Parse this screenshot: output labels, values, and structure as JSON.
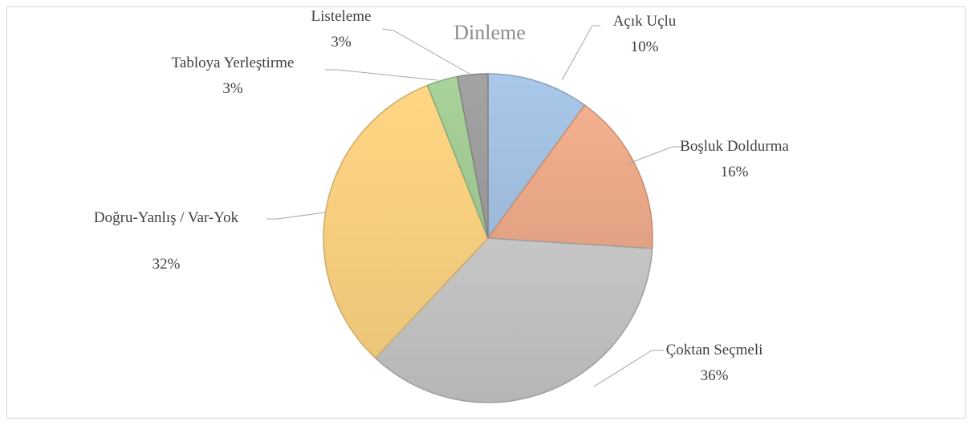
{
  "chart_data": {
    "type": "pie",
    "title": "Dinleme",
    "categories": [
      "Açık Uçlu",
      "Boşluk Doldurma",
      "Çoktan Seçmeli",
      "Doğru-Yanlış / Var-Yok",
      "Tabloya Yerleştirme",
      "Listeleme"
    ],
    "values": [
      10,
      16,
      36,
      32,
      3,
      3
    ],
    "value_labels": [
      "10%",
      "16%",
      "36%",
      "32%",
      "3%",
      "3%"
    ],
    "colors": [
      "#a9c8ea",
      "#f5b08e",
      "#c6c6c6",
      "#ffd683",
      "#a8d39a",
      "#a3a3a3"
    ]
  }
}
